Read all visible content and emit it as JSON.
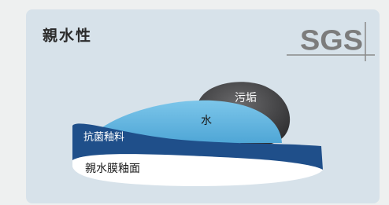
{
  "title": "親水性",
  "logo": "SGS",
  "labels": {
    "dirt": "污垢",
    "water": "水",
    "glaze": "抗菌釉料",
    "film": "親水膜釉面"
  }
}
